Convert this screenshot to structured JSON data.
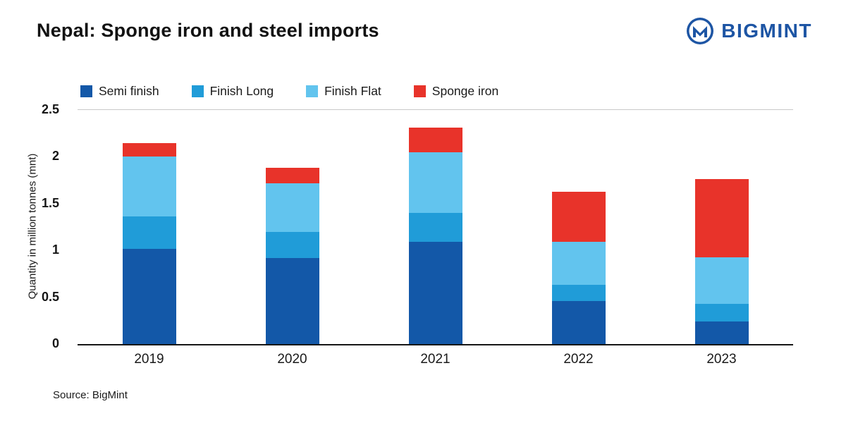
{
  "header": {
    "title": "Nepal: Sponge iron and steel imports",
    "brand": "BIGMINT",
    "brand_color": "#1d55a4"
  },
  "footer": {
    "source": "Source: BigMint"
  },
  "chart_data": {
    "type": "bar",
    "stacked": true,
    "title": "Nepal: Sponge iron and steel imports",
    "categories": [
      "2019",
      "2020",
      "2021",
      "2022",
      "2023"
    ],
    "series": [
      {
        "name": "Semi finish",
        "color": "#1358a8",
        "values": [
          1.02,
          0.92,
          1.09,
          0.46,
          0.24
        ]
      },
      {
        "name": "Finish Long",
        "color": "#209cd8",
        "values": [
          0.34,
          0.28,
          0.31,
          0.17,
          0.19
        ]
      },
      {
        "name": "Finish Flat",
        "color": "#62c4ee",
        "values": [
          0.64,
          0.52,
          0.65,
          0.46,
          0.5
        ]
      },
      {
        "name": "Sponge iron",
        "color": "#e8332a",
        "values": [
          0.15,
          0.16,
          0.26,
          0.54,
          0.83
        ]
      }
    ],
    "xlabel": "",
    "ylabel": "Quantity in million tonnes (mnt)",
    "yticks": [
      0,
      0.5,
      1,
      1.5,
      2,
      2.5
    ],
    "ylim": [
      0,
      2.5
    ],
    "grid": "top-line-only",
    "legend_position": "top"
  }
}
